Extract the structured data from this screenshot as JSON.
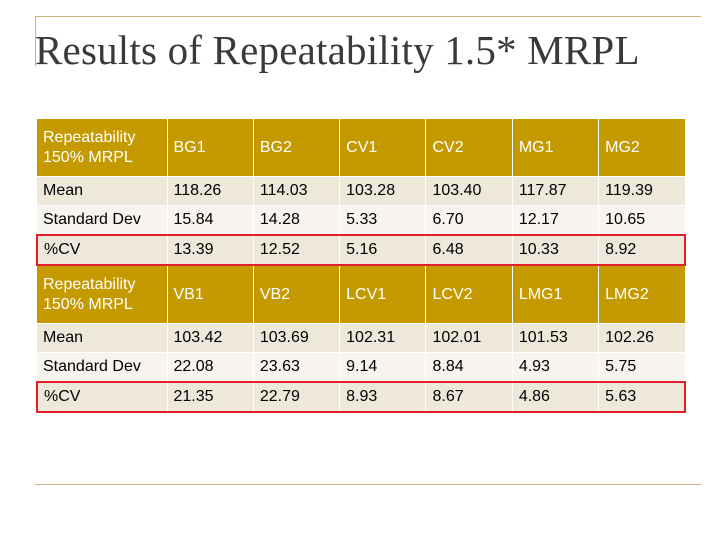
{
  "slide": {
    "title": "Results of Repeatability 1.5* MRPL"
  },
  "sections": [
    {
      "header": [
        "Repeatability 150% MRPL",
        "BG1",
        "BG2",
        "CV1",
        "CV2",
        "MG1",
        "MG2"
      ],
      "rows": [
        {
          "label": "Mean",
          "values": [
            "118.26",
            "114.03",
            "103.28",
            "103.40",
            "117.87",
            "119.39"
          ]
        },
        {
          "label": "Standard Dev",
          "values": [
            "15.84",
            "14.28",
            "5.33",
            "6.70",
            "12.17",
            "10.65"
          ]
        },
        {
          "label": "%CV",
          "values": [
            "13.39",
            "12.52",
            "5.16",
            "6.48",
            "10.33",
            "8.92"
          ],
          "highlighted": true
        }
      ]
    },
    {
      "header": [
        "Repeatability 150% MRPL",
        "VB1",
        "VB2",
        "LCV1",
        "LCV2",
        "LMG1",
        "LMG2"
      ],
      "rows": [
        {
          "label": "Mean",
          "values": [
            "103.42",
            "103.69",
            "102.31",
            "102.01",
            "101.53",
            "102.26"
          ]
        },
        {
          "label": "Standard Dev",
          "values": [
            "22.08",
            "23.63",
            "9.14",
            "8.84",
            "4.93",
            "5.75"
          ]
        },
        {
          "label": "%CV",
          "values": [
            "21.35",
            "22.79",
            "8.93",
            "8.67",
            "4.86",
            "5.63"
          ],
          "highlighted": true
        }
      ]
    }
  ],
  "colors": {
    "header_fill": "#c49a00",
    "row_odd": "#eee8db",
    "row_even": "#f7f3ee",
    "highlight_border": "#e01f2a",
    "decor_line": "#c8b57a"
  }
}
